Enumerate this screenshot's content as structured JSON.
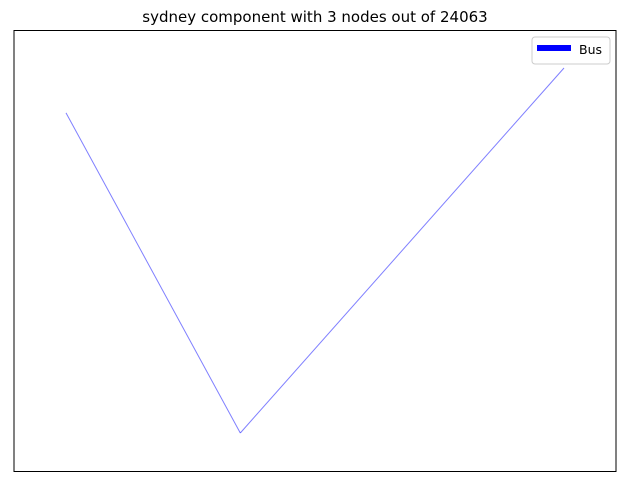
{
  "figure": {
    "title": "sydney component with 3 nodes out of 24063"
  },
  "network": {
    "nodes": [
      {
        "id": "n1",
        "x": 0.0,
        "y": 0.75
      },
      {
        "id": "n2",
        "x": 0.35,
        "y": 0.0
      },
      {
        "id": "n3",
        "x": 1.0,
        "y": 0.855
      }
    ],
    "edges": [
      {
        "from": "n1",
        "to": "n2",
        "mode": "Bus"
      },
      {
        "from": "n2",
        "to": "n3",
        "mode": "Bus"
      }
    ],
    "mode_colors": {
      "Bus": "#0000ff"
    },
    "edge_opacity": 0.5
  },
  "legend": {
    "placement": "upper-right",
    "entries": [
      {
        "label": "Bus",
        "color": "#0000ff"
      }
    ]
  }
}
